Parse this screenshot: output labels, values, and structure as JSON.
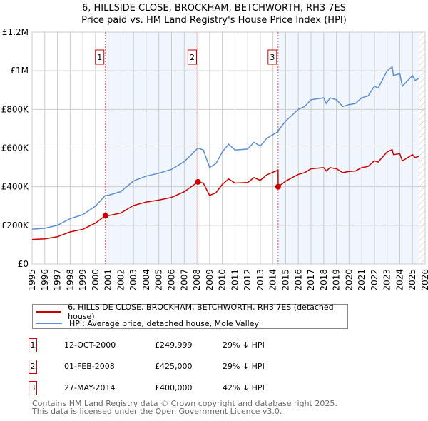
{
  "title_line1": "6, HILLSIDE CLOSE, BROCKHAM, BETCHWORTH, RH3 7ES",
  "title_line2": "Price paid vs. HM Land Registry's House Price Index (HPI)",
  "chart_data": {
    "type": "line",
    "xlim": [
      1995,
      2026
    ],
    "ylim": [
      0,
      1200000
    ],
    "y_ticks": [
      0,
      200000,
      400000,
      600000,
      800000,
      1000000,
      1200000
    ],
    "y_tick_labels": [
      "£0",
      "£200K",
      "£400K",
      "£600K",
      "£800K",
      "£1M",
      "£1.2M"
    ],
    "x_ticks": [
      "1995",
      "1996",
      "1997",
      "1998",
      "1999",
      "2000",
      "2001",
      "2002",
      "2003",
      "2004",
      "2005",
      "2006",
      "2007",
      "2008",
      "2009",
      "2010",
      "2011",
      "2012",
      "2013",
      "2014",
      "2015",
      "2016",
      "2017",
      "2018",
      "2019",
      "2020",
      "2021",
      "2022",
      "2023",
      "2024",
      "2025",
      "2026"
    ],
    "grid": true,
    "shaded_ranges": [
      [
        2000.78,
        2008.08
      ],
      [
        2014.4,
        2025.5
      ]
    ],
    "hatched_from": 2025.5,
    "series": [
      {
        "name": "HPI: Average price, detached house, Mole Valley",
        "color": "#5b8fd0",
        "x": [
          1995,
          1996,
          1997,
          1998,
          1999,
          2000,
          2000.78,
          2001,
          2002,
          2003,
          2004,
          2005,
          2006,
          2007,
          2008.08,
          2008.5,
          2009,
          2009.5,
          2010,
          2010.5,
          2011,
          2012,
          2012.5,
          2013,
          2013.5,
          2014.4,
          2014.41,
          2015,
          2016,
          2016.5,
          2017,
          2018,
          2018.2,
          2018.5,
          2019,
          2019.5,
          2020,
          2020.5,
          2021,
          2021.5,
          2022,
          2022.3,
          2023,
          2023.4,
          2023.5,
          2024,
          2024.2,
          2024.5,
          2025,
          2025.2,
          2025.5
        ],
        "values": [
          180000,
          185000,
          200000,
          235000,
          255000,
          300000,
          355000,
          355000,
          375000,
          430000,
          455000,
          470000,
          490000,
          530000,
          600000,
          590000,
          500000,
          520000,
          580000,
          620000,
          590000,
          595000,
          630000,
          610000,
          650000,
          685000,
          690000,
          740000,
          800000,
          815000,
          850000,
          860000,
          830000,
          860000,
          850000,
          815000,
          825000,
          830000,
          860000,
          870000,
          920000,
          910000,
          1000000,
          1020000,
          975000,
          985000,
          920000,
          940000,
          975000,
          950000,
          960000
        ]
      },
      {
        "name": "6, HILLSIDE CLOSE, BROCKHAM, BETCHWORTH, RH3 7ES (detached house)",
        "color": "#cc0000",
        "x": [
          1995,
          1996,
          1997,
          1998,
          1999,
          2000,
          2000.78,
          2001,
          2002,
          2003,
          2004,
          2005,
          2006,
          2007,
          2008.08,
          2008.5,
          2009,
          2009.5,
          2010,
          2010.5,
          2011,
          2012,
          2012.5,
          2013,
          2013.5,
          2014.4,
          2014.41,
          2015,
          2016,
          2016.5,
          2017,
          2018,
          2018.2,
          2018.5,
          2019,
          2019.5,
          2020,
          2020.5,
          2021,
          2021.5,
          2022,
          2022.3,
          2023,
          2023.4,
          2023.5,
          2024,
          2024.2,
          2024.5,
          2025,
          2025.2,
          2025.5
        ],
        "values": [
          127000,
          130000,
          141000,
          166000,
          180000,
          212000,
          250000,
          250000,
          264000,
          303000,
          321000,
          331000,
          345000,
          374000,
          425000,
          419000,
          355000,
          369000,
          412000,
          440000,
          419000,
          422000,
          447000,
          433000,
          461000,
          486000,
          400000,
          429000,
          464000,
          473000,
          493000,
          499000,
          481000,
          499000,
          493000,
          473000,
          479000,
          481000,
          499000,
          505000,
          534000,
          528000,
          580000,
          592000,
          566000,
          571000,
          534000,
          545000,
          566000,
          551000,
          557000
        ]
      }
    ],
    "sales": [
      {
        "label": "1",
        "x": 2000.78,
        "value": 249999,
        "date": "12-OCT-2000",
        "price": "£249,999",
        "hpi": "29% ↓ HPI"
      },
      {
        "label": "2",
        "x": 2008.08,
        "value": 425000,
        "date": "01-FEB-2008",
        "price": "£425,000",
        "hpi": "29% ↓ HPI"
      },
      {
        "label": "3",
        "x": 2014.4,
        "value": 400000,
        "date": "27-MAY-2014",
        "price": "£400,000",
        "hpi": "42% ↓ HPI"
      }
    ]
  },
  "legend": {
    "red": "6, HILLSIDE CLOSE, BROCKHAM, BETCHWORTH, RH3 7ES (detached house)",
    "blue": "HPI: Average price, detached house, Mole Valley"
  },
  "footer_line1": "Contains HM Land Registry data © Crown copyright and database right 2025.",
  "footer_line2": "This data is licensed under the Open Government Licence v3.0."
}
